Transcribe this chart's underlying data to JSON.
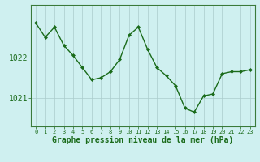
{
  "x": [
    0,
    1,
    2,
    3,
    4,
    5,
    6,
    7,
    8,
    9,
    10,
    11,
    12,
    13,
    14,
    15,
    16,
    17,
    18,
    19,
    20,
    21,
    22,
    23
  ],
  "y": [
    1022.85,
    1022.5,
    1022.75,
    1022.3,
    1022.05,
    1021.75,
    1021.45,
    1021.5,
    1021.65,
    1021.95,
    1022.55,
    1022.75,
    1022.2,
    1021.75,
    1021.55,
    1021.3,
    1020.75,
    1020.65,
    1021.05,
    1021.1,
    1021.6,
    1021.65,
    1021.65,
    1021.7
  ],
  "line_color": "#1a6b1a",
  "marker_color": "#1a6b1a",
  "bg_color": "#cff0f0",
  "grid_color": "#aacccc",
  "xlabel": "Graphe pression niveau de la mer (hPa)",
  "xlabel_color": "#1a6b1a",
  "ytick_labels": [
    "1021",
    "1022"
  ],
  "ytick_vals": [
    1021,
    1022
  ],
  "ylim": [
    1020.3,
    1023.3
  ],
  "xlim": [
    -0.5,
    23.5
  ],
  "tick_color": "#1a6b1a",
  "axis_color": "#3a7a3a",
  "font_size_xlabel": 7,
  "font_size_ytick": 7,
  "font_size_xtick": 5
}
